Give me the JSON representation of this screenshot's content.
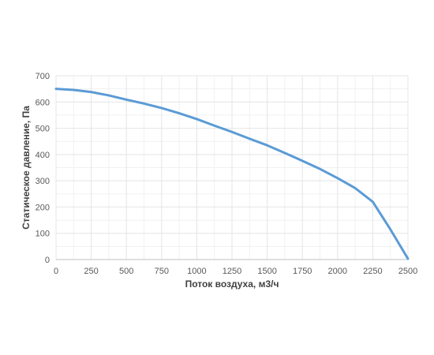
{
  "chart_data": {
    "type": "line",
    "title": "",
    "xlabel": "Поток воздуха, м3/ч",
    "ylabel": "Статическое давление, Па",
    "xlim": [
      0,
      2500
    ],
    "ylim": [
      0,
      700
    ],
    "x_ticks": [
      0,
      250,
      500,
      750,
      1000,
      1250,
      1500,
      1750,
      2000,
      2250,
      2500
    ],
    "y_ticks": [
      0,
      100,
      200,
      300,
      400,
      500,
      600,
      700
    ],
    "x_tick_labels": [
      "0",
      "250",
      "500",
      "750",
      "1000",
      "1250",
      "1500",
      "1750",
      "2000",
      "2250",
      "2500"
    ],
    "y_tick_labels": [
      "0",
      "100",
      "200",
      "300",
      "400",
      "500",
      "600",
      "700"
    ],
    "grid": true,
    "legend": "none",
    "series": [
      {
        "color": "#5b9bd5",
        "x": [
          0,
          125,
          250,
          375,
          500,
          625,
          750,
          875,
          1000,
          1125,
          1250,
          1375,
          1500,
          1625,
          1750,
          1875,
          2000,
          2125,
          2250,
          2375,
          2500
        ],
        "y": [
          650,
          646,
          638,
          625,
          609,
          594,
          577,
          557,
          535,
          510,
          486,
          460,
          435,
          406,
          376,
          345,
          310,
          272,
          220,
          115,
          3
        ]
      }
    ]
  }
}
